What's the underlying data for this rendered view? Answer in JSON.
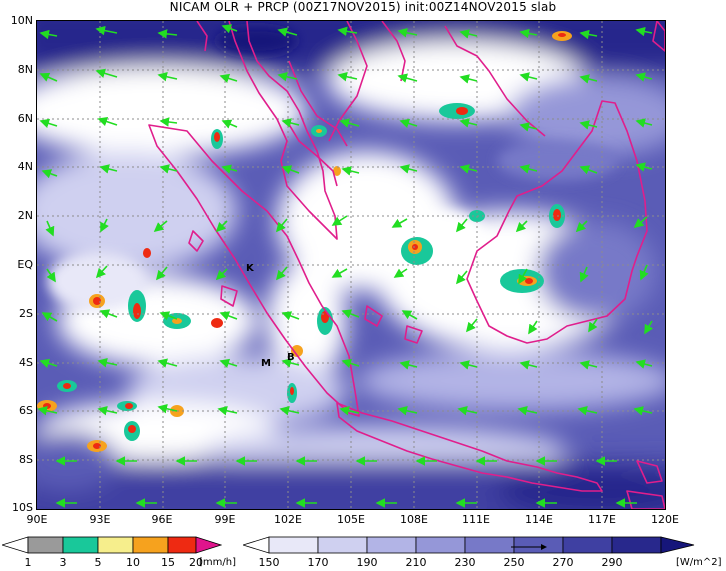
{
  "title": "NICAM OLR + PRCP (00Z17NOV2015) init:00Z14NOV2015 slab",
  "lat_labels": [
    "10N",
    "8N",
    "6N",
    "4N",
    "2N",
    "EQ",
    "2S",
    "4S",
    "6S",
    "8S",
    "10S"
  ],
  "lon_labels": [
    "90E",
    "93E",
    "96E",
    "99E",
    "102E",
    "105E",
    "108E",
    "111E",
    "114E",
    "117E",
    "120E"
  ],
  "markers": {
    "k": "K",
    "m": "M",
    "b": "B"
  },
  "prcp_colorbar": {
    "labels": [
      "1",
      "3",
      "5",
      "10",
      "15",
      "20"
    ],
    "unit": "[mm/h]",
    "colors": [
      "#ffffff",
      "#9a9a9a",
      "#19c89a",
      "#f6ee8c",
      "#f6a21e",
      "#ee2a12",
      "#e0148c"
    ]
  },
  "olr_colorbar": {
    "labels": [
      "150",
      "170",
      "190",
      "210",
      "230",
      "250",
      "270",
      "290"
    ],
    "unit": "[W/m^2]",
    "colors": [
      "#ffffff",
      "#e8e8f8",
      "#cfd0f0",
      "#b2b4e6",
      "#9597d8",
      "#7779c8",
      "#5a5cb6",
      "#3f40a2",
      "#28288c",
      "#16167a"
    ]
  },
  "vector_color": "#22dd22",
  "coast_color": "#e01e8c"
}
